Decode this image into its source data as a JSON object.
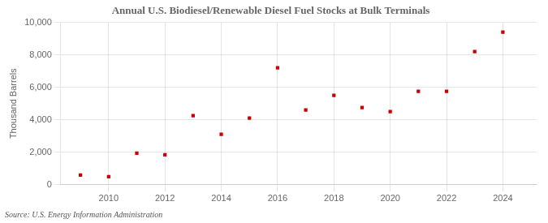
{
  "chart_data": {
    "type": "scatter",
    "title": "Annual U.S. Biodiesel/Renewable Diesel Fuel Stocks at Bulk Terminals",
    "ylabel": "Thousand Barrels",
    "annotations": [
      "Source: U.S. Energy Information Administration"
    ],
    "x": [
      2009,
      2010,
      2011,
      2012,
      2013,
      2014,
      2015,
      2016,
      2017,
      2018,
      2019,
      2020,
      2021,
      2022,
      2023,
      2024
    ],
    "values": [
      600,
      500,
      1950,
      1850,
      4250,
      3100,
      4100,
      7200,
      4600,
      5500,
      4750,
      4500,
      5750,
      5750,
      8200,
      9400
    ],
    "color": "#cc0000",
    "marker": "square",
    "xlim": [
      2008.3,
      2025.2
    ],
    "xticks": [
      2010,
      2012,
      2014,
      2016,
      2018,
      2020,
      2022,
      2024
    ],
    "ylim": [
      0,
      10000
    ],
    "yticks": [
      0,
      {
        "value": 2000,
        "label": "2,000"
      },
      {
        "value": 4000,
        "label": "4,000"
      },
      {
        "value": 6000,
        "label": "6,000"
      },
      {
        "value": 8000,
        "label": "8,000"
      },
      {
        "value": 10000,
        "label": "10,000"
      }
    ],
    "grid": true
  }
}
